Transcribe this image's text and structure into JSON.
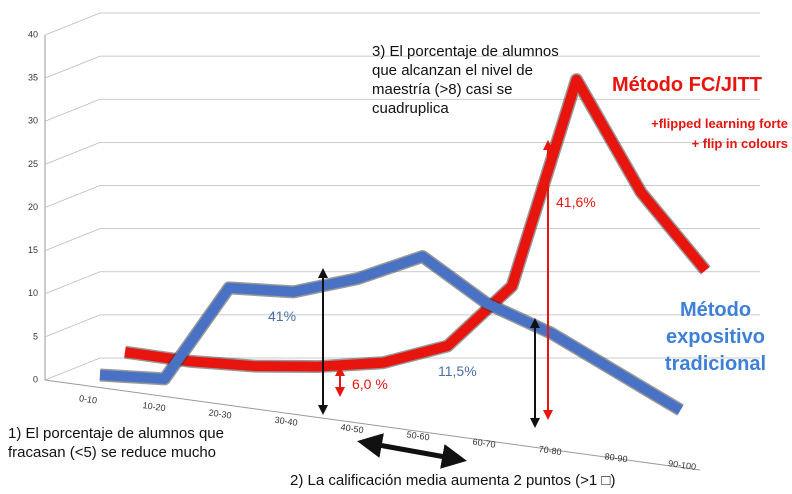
{
  "chart_data": {
    "type": "line3d",
    "categories": [
      "0-10",
      "10-20",
      "20-30",
      "30-40",
      "40-50",
      "50-60",
      "60-70",
      "70-80",
      "80-90",
      "90-100"
    ],
    "series": [
      {
        "name": "Método FC/JITT",
        "color": "#e8140e",
        "values": [
          3,
          2,
          1.5,
          1.5,
          2,
          4,
          11,
          35,
          22,
          13
        ]
      },
      {
        "name": "Método expositivo tradicional",
        "color": "#4a72c4",
        "values": [
          0,
          0,
          11,
          11,
          13,
          16,
          11,
          8,
          4,
          0
        ]
      }
    ],
    "series_notes": [
      "+flipped learning forte",
      "+ flip in colours"
    ],
    "ylim": [
      0,
      40
    ],
    "yticks": [
      0,
      5,
      10,
      15,
      20,
      25,
      30,
      35,
      40
    ],
    "grid": true,
    "annotations": [
      "3) El porcentaje de alumnos que alcanzan el nivel de maestría (>8) casi se cuadruplica",
      "1) El porcentaje de alumnos que fracasan (<5) se reduce mucho",
      "2) La calificación media aumenta 2 puntos (>1 □)",
      "41%",
      "6,0 %",
      "11,5%",
      "41,6%"
    ]
  }
}
